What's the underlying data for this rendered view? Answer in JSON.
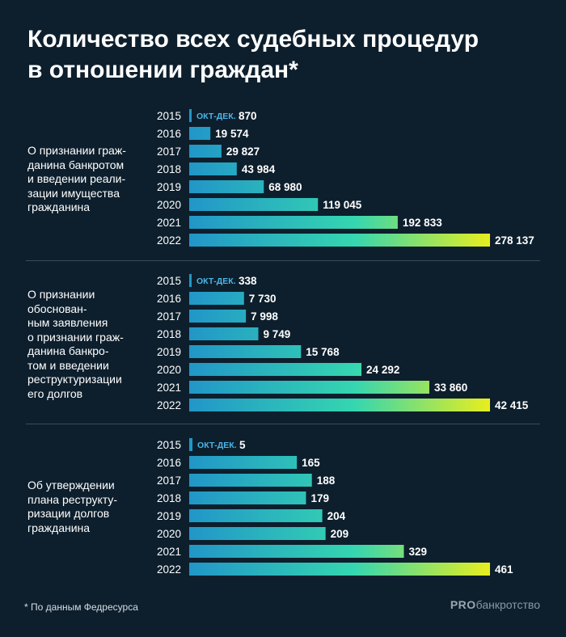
{
  "chart_data": {
    "type": "bar",
    "orientation": "horizontal",
    "title_lines": [
      "Количество всех судебных процедур",
      "в отношении граждан*"
    ],
    "period_note": "ОКТ-ДЕК.",
    "groups": [
      {
        "label_lines": [
          "О признании граж-",
          "данина банкротом",
          "и введении реали-",
          "зации имущества",
          "гражданина"
        ],
        "years": [
          "2015",
          "2016",
          "2017",
          "2018",
          "2019",
          "2020",
          "2021",
          "2022"
        ],
        "values": [
          870,
          19574,
          29827,
          43984,
          68980,
          119045,
          192833,
          278137
        ],
        "value_labels": [
          "870",
          "19 574",
          "29 827",
          "43 984",
          "68 980",
          "119 045",
          "192 833",
          "278 137"
        ]
      },
      {
        "label_lines": [
          "О признании",
          "обоснован-",
          "ным заявления",
          "о признании граж-",
          "данина банкро-",
          "том и введении",
          "реструктуризации",
          "его долгов"
        ],
        "years": [
          "2015",
          "2016",
          "2017",
          "2018",
          "2019",
          "2020",
          "2021",
          "2022"
        ],
        "values": [
          338,
          7730,
          7998,
          9749,
          15768,
          24292,
          33860,
          42415
        ],
        "value_labels": [
          "338",
          "7 730",
          "7 998",
          "9 749",
          "15 768",
          "24 292",
          "33 860",
          "42 415"
        ]
      },
      {
        "label_lines": [
          "Об утверждении",
          "плана реструкту-",
          "ризации долгов",
          "гражданина"
        ],
        "years": [
          "2015",
          "2016",
          "2017",
          "2018",
          "2019",
          "2020",
          "2021",
          "2022"
        ],
        "values": [
          5,
          165,
          188,
          179,
          204,
          209,
          329,
          461
        ],
        "value_labels": [
          "5",
          "165",
          "188",
          "179",
          "204",
          "209",
          "329",
          "461"
        ]
      }
    ],
    "colors": {
      "start": "#2196c8",
      "mid": "#35d6b0",
      "end": "#e8ee1e",
      "background": "#0d1f2d",
      "note": "#4ab6e8"
    }
  },
  "footnote": "* По данным Федресурса",
  "brand": {
    "bold": "PRO",
    "rest": "банкротство"
  }
}
